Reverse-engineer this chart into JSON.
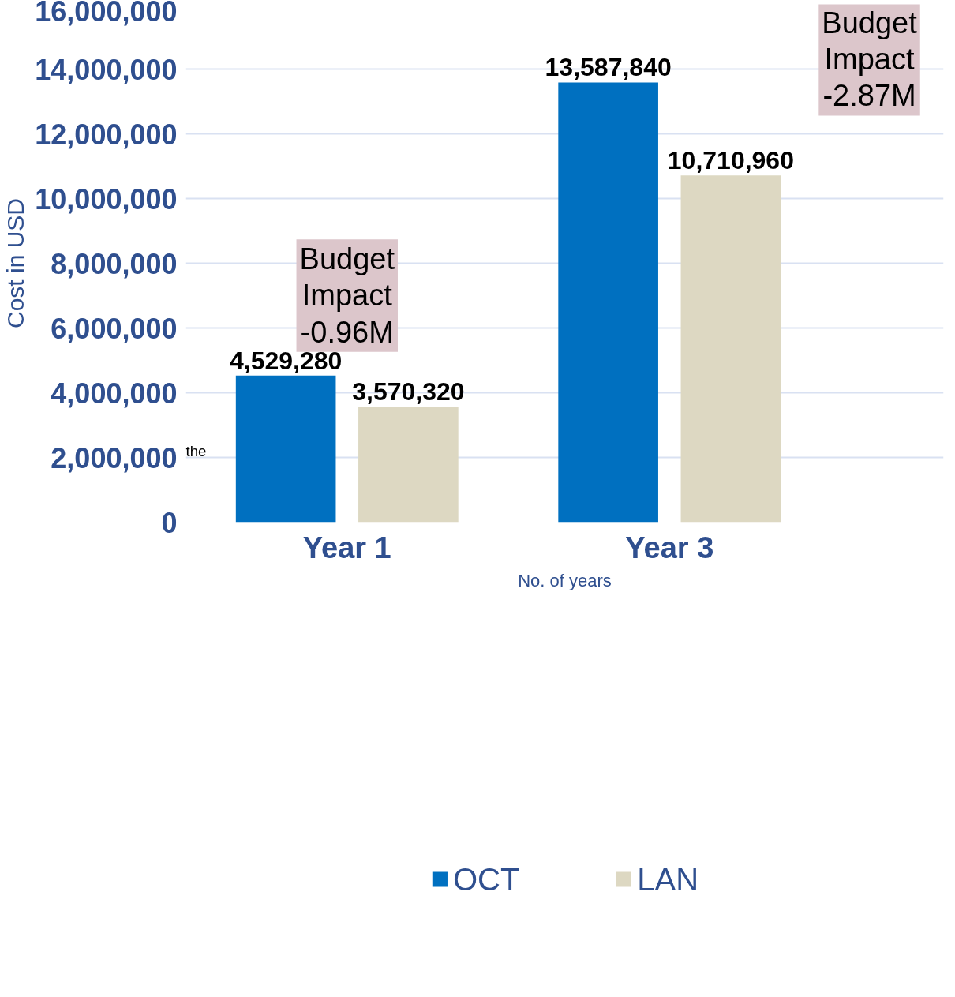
{
  "chart_data": {
    "type": "bar",
    "xlabel": "No. of years",
    "ylabel": "Cost in USD",
    "categories": [
      "Year 1",
      "Year 3"
    ],
    "series": [
      {
        "name": "OCT",
        "color": "#0070c0",
        "values": [
          4529280,
          13587840
        ]
      },
      {
        "name": "LAN",
        "color": "#ddd8c2",
        "values": [
          3570320,
          10710960
        ]
      }
    ],
    "ylim": [
      0,
      16000000
    ],
    "yticks": [
      {
        "value": 0,
        "label": "0"
      },
      {
        "value": 2000000,
        "label": "2,000,000"
      },
      {
        "value": 4000000,
        "label": "4,000,000"
      },
      {
        "value": 6000000,
        "label": "6,000,000"
      },
      {
        "value": 8000000,
        "label": "8,000,000"
      },
      {
        "value": 10000000,
        "label": "10,000,000"
      },
      {
        "value": 12000000,
        "label": "12,000,000"
      },
      {
        "value": 14000000,
        "label": "14,000,000"
      },
      {
        "value": 16000000,
        "label": "16,000,000"
      }
    ],
    "grid": "y",
    "legend": "bottom",
    "value_labels": [
      [
        "4,529,280",
        "13,587,840"
      ],
      [
        "3,570,320",
        "10,710,960"
      ]
    ],
    "annotations": [
      "Budget\nImpact\n-0.96M",
      "Budget\nImpact\n-2.87M",
      "the"
    ]
  }
}
